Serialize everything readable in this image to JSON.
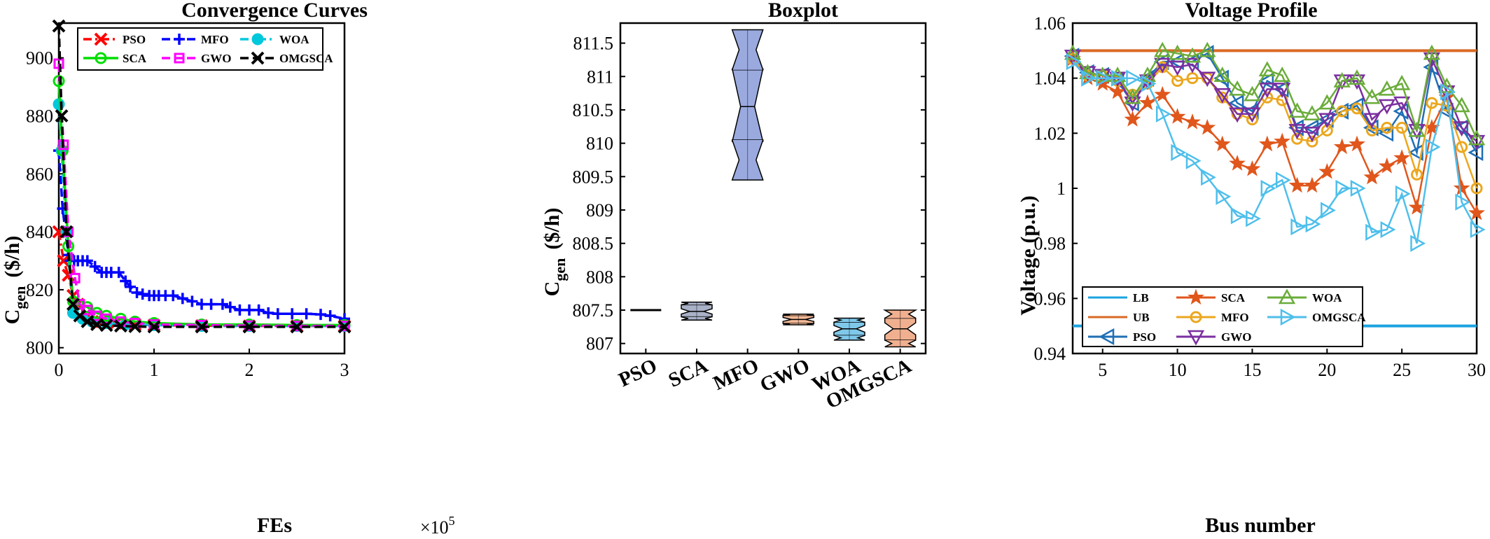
{
  "chart_data": [
    {
      "type": "line",
      "title": "Convergence Curves",
      "xlabel": "FEs",
      "ylabel_main": "C",
      "ylabel_sub": "gen",
      "ylabel_unit": "($/h)",
      "x_multiplier": "×10",
      "x_exponent": "5",
      "xlim": [
        0,
        3
      ],
      "ylim": [
        798,
        912
      ],
      "xticks": [
        0,
        1,
        2,
        3
      ],
      "yticks": [
        800,
        820,
        840,
        860,
        880,
        900
      ],
      "legend_position": "top",
      "series": [
        {
          "name": "PSO",
          "color": "#ff0000",
          "dash": "dashdot",
          "marker": "x",
          "x": [
            0,
            0.05,
            0.1,
            0.15,
            0.2,
            0.3,
            0.45,
            0.6,
            0.8,
            1.0,
            1.5,
            2.0,
            2.5,
            3.0
          ],
          "y": [
            840,
            830,
            825,
            818,
            815,
            811,
            809,
            808.5,
            808,
            807.8,
            807.6,
            807.5,
            807.5,
            807.5
          ]
        },
        {
          "name": "MFO",
          "color": "#0000ff",
          "dash": "dashed",
          "marker": "+",
          "x": [
            0,
            0.04,
            0.1,
            0.12,
            0.16,
            0.2,
            0.25,
            0.3,
            0.38,
            0.45,
            0.5,
            0.55,
            0.63,
            0.7,
            0.75,
            0.82,
            0.88,
            0.95,
            1.0,
            1.05,
            1.12,
            1.2,
            1.3,
            1.4,
            1.5,
            1.6,
            1.72,
            1.8,
            1.9,
            2.0,
            2.1,
            2.2,
            2.3,
            2.45,
            2.6,
            2.75,
            2.85,
            3.0
          ],
          "y": [
            868,
            848,
            832,
            830,
            830,
            830,
            830,
            830,
            828,
            826,
            826,
            826,
            826,
            823,
            821,
            819,
            818.5,
            818,
            818,
            818,
            818,
            818,
            817,
            816,
            815,
            815,
            815,
            814,
            813,
            813,
            813,
            812,
            811.7,
            811.7,
            811.7,
            811.5,
            811,
            810
          ]
        },
        {
          "name": "WOA",
          "color": "#00c8dc",
          "dash": "dashdot",
          "marker": "o",
          "x": [
            0,
            0.03,
            0.08,
            0.15,
            0.25,
            0.35,
            0.5,
            0.7,
            1.0,
            1.5,
            2.0,
            2.5,
            3.0
          ],
          "y": [
            884,
            868,
            840,
            812,
            810,
            809,
            808.5,
            808,
            807.8,
            807.5,
            807.5,
            807.5,
            807.5
          ]
        },
        {
          "name": "SCA",
          "color": "#00dd00",
          "dash": "solid",
          "marker": "o",
          "x": [
            0,
            0.04,
            0.1,
            0.15,
            0.2,
            0.3,
            0.4,
            0.5,
            0.65,
            0.8,
            1.0,
            1.5,
            2.0,
            2.5,
            3.0
          ],
          "y": [
            892,
            868,
            835,
            816,
            815,
            814,
            812,
            811,
            810,
            809,
            808.5,
            808,
            808,
            807.8,
            807.8
          ]
        },
        {
          "name": "GWO",
          "color": "#ff00ff",
          "dash": "dashed",
          "marker": "s",
          "x": [
            0,
            0.05,
            0.1,
            0.17,
            0.22,
            0.3,
            0.4,
            0.5,
            0.65,
            0.8,
            1.0,
            1.5,
            2.0,
            2.5,
            3.0
          ],
          "y": [
            898,
            870,
            840,
            824,
            815,
            813,
            811,
            810,
            809,
            808.5,
            808,
            807.8,
            807.6,
            807.5,
            807.5
          ]
        },
        {
          "name": "OMGSCA",
          "color": "#000000",
          "dash": "dashed",
          "marker": "x",
          "x": [
            0,
            0.03,
            0.08,
            0.15,
            0.22,
            0.3,
            0.4,
            0.5,
            0.65,
            0.8,
            1.0,
            1.5,
            2.0,
            2.5,
            3.0
          ],
          "y": [
            911,
            880,
            840,
            815,
            811,
            809,
            808,
            807.7,
            807.5,
            807.3,
            807.2,
            807.2,
            807.2,
            807.2,
            807.2
          ]
        }
      ]
    },
    {
      "type": "box",
      "title": "Boxplot",
      "ylabel_main": "C",
      "ylabel_sub": "gen",
      "ylabel_unit": "($/h)",
      "ylim": [
        806.85,
        811.8
      ],
      "yticks": [
        807,
        807.5,
        808,
        808.5,
        809,
        809.5,
        810,
        810.5,
        811,
        811.5
      ],
      "categories": [
        "PSO",
        "SCA",
        "MFO",
        "GWO",
        "WOA",
        "OMGSCA"
      ],
      "boxes": [
        {
          "min": 807.5,
          "q1": 807.5,
          "median": 807.5,
          "q3": 807.5,
          "max": 807.5,
          "notch_lo": 807.5,
          "notch_hi": 807.5,
          "color": "#e9e9e9"
        },
        {
          "min": 807.35,
          "q1": 807.4,
          "median": 807.48,
          "q3": 807.58,
          "max": 807.62,
          "notch_lo": 807.44,
          "notch_hi": 807.52,
          "color": "#a9b1c7"
        },
        {
          "min": 809.45,
          "q1": 810.05,
          "median": 810.55,
          "q3": 811.1,
          "max": 811.7,
          "notch_lo": 810.02,
          "notch_hi": 811.12,
          "color": "#9aaadf"
        },
        {
          "min": 807.28,
          "q1": 807.3,
          "median": 807.36,
          "q3": 807.42,
          "max": 807.44,
          "notch_lo": 807.33,
          "notch_hi": 807.39,
          "color": "#f2b896"
        },
        {
          "min": 807.05,
          "q1": 807.12,
          "median": 807.22,
          "q3": 807.32,
          "max": 807.38,
          "notch_lo": 807.17,
          "notch_hi": 807.27,
          "color": "#7fc8ea"
        },
        {
          "min": 806.95,
          "q1": 807.05,
          "median": 807.22,
          "q3": 807.38,
          "max": 807.5,
          "notch_lo": 807.13,
          "notch_hi": 807.31,
          "color": "#f0b08f"
        }
      ]
    },
    {
      "type": "line",
      "title": "Voltage Profile",
      "xlabel": "Bus number",
      "ylabel": "Voltage (p.u.)",
      "xlim": [
        3,
        30
      ],
      "ylim": [
        0.94,
        1.06
      ],
      "xticks": [
        5,
        10,
        15,
        20,
        25,
        30
      ],
      "yticks": [
        0.94,
        0.96,
        0.98,
        1,
        1.02,
        1.04,
        1.06
      ],
      "legend_position": "bottom",
      "x": [
        3,
        4,
        5,
        6,
        7,
        8,
        9,
        10,
        11,
        12,
        13,
        14,
        15,
        16,
        17,
        18,
        19,
        20,
        21,
        22,
        23,
        24,
        25,
        26,
        27,
        28,
        29,
        30
      ],
      "series": [
        {
          "name": "LB",
          "color": "#1ba3e0",
          "marker": "none",
          "constant": 0.95
        },
        {
          "name": "UB",
          "color": "#d96a25",
          "marker": "none",
          "constant": 1.05
        },
        {
          "name": "PSO",
          "color": "#1f6fb5",
          "marker": "tri-left",
          "y": [
            1.048,
            1.042,
            1.041,
            1.039,
            1.031,
            1.04,
            1.046,
            1.046,
            1.046,
            1.049,
            1.04,
            1.031,
            1.028,
            1.039,
            1.036,
            1.022,
            1.022,
            1.025,
            1.028,
            1.03,
            1.022,
            1.02,
            1.028,
            1.013,
            1.044,
            1.028,
            1.022,
            1.013
          ]
        },
        {
          "name": "SCA",
          "color": "#e0561b",
          "marker": "star",
          "y": [
            1.047,
            1.04,
            1.038,
            1.035,
            1.025,
            1.031,
            1.034,
            1.026,
            1.024,
            1.022,
            1.016,
            1.009,
            1.007,
            1.016,
            1.017,
            1.001,
            1.001,
            1.006,
            1.015,
            1.016,
            1.004,
            1.008,
            1.011,
            0.993,
            1.022,
            1.033,
            1.0,
            0.991
          ]
        },
        {
          "name": "MFO",
          "color": "#eba71f",
          "marker": "circle",
          "y": [
            1.047,
            1.041,
            1.041,
            1.039,
            1.034,
            1.038,
            1.044,
            1.039,
            1.04,
            1.04,
            1.033,
            1.027,
            1.025,
            1.033,
            1.032,
            1.018,
            1.017,
            1.021,
            1.028,
            1.029,
            1.021,
            1.022,
            1.022,
            1.005,
            1.031,
            1.03,
            1.015,
            1.0
          ]
        },
        {
          "name": "GWO",
          "color": "#7b2fa0",
          "marker": "tri-down",
          "y": [
            1.048,
            1.042,
            1.041,
            1.04,
            1.031,
            1.039,
            1.045,
            1.044,
            1.045,
            1.04,
            1.034,
            1.027,
            1.027,
            1.036,
            1.036,
            1.021,
            1.02,
            1.025,
            1.039,
            1.039,
            1.025,
            1.03,
            1.031,
            1.021,
            1.047,
            1.035,
            1.022,
            1.017
          ]
        },
        {
          "name": "WOA",
          "color": "#6aac3a",
          "marker": "tri-up",
          "y": [
            1.049,
            1.042,
            1.041,
            1.041,
            1.033,
            1.041,
            1.05,
            1.049,
            1.048,
            1.05,
            1.041,
            1.036,
            1.034,
            1.043,
            1.041,
            1.028,
            1.027,
            1.031,
            1.039,
            1.04,
            1.033,
            1.036,
            1.038,
            1.021,
            1.049,
            1.037,
            1.03,
            1.018
          ]
        },
        {
          "name": "OMGSCA",
          "color": "#4fbfeb",
          "marker": "tri-right",
          "y": [
            1.046,
            1.04,
            1.04,
            1.04,
            1.04,
            1.038,
            1.027,
            1.013,
            1.01,
            1.004,
            0.997,
            0.99,
            0.989,
            1.0,
            1.003,
            0.986,
            0.987,
            0.992,
            1.0,
            1.0,
            0.984,
            0.985,
            0.998,
            0.98,
            1.015,
            1.035,
            0.995,
            0.985
          ]
        }
      ]
    }
  ]
}
